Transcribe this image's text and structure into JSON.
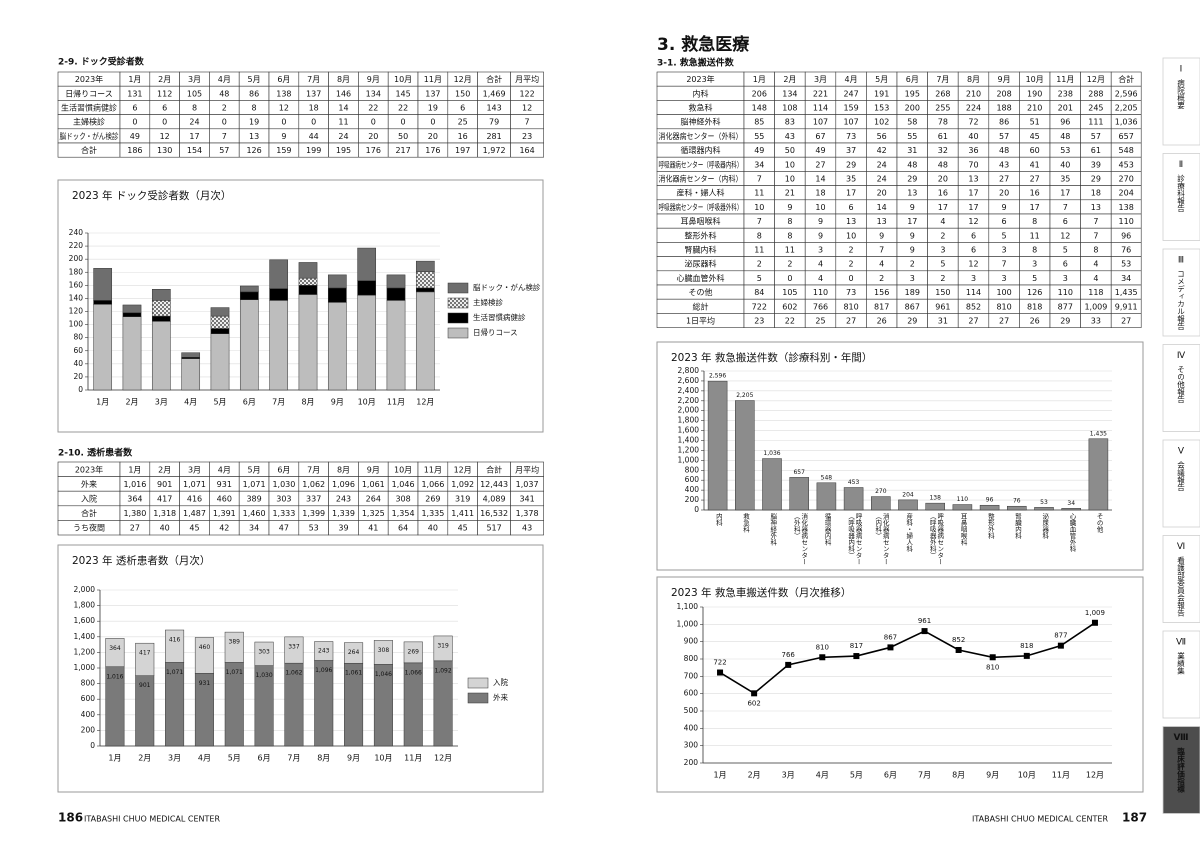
{
  "dock_section": "2-9. ドック受診者数",
  "dock_table": {
    "header": [
      "2023年",
      "1月",
      "2月",
      "3月",
      "4月",
      "5月",
      "6月",
      "7月",
      "8月",
      "9月",
      "10月",
      "11月",
      "12月",
      "合計",
      "月平均"
    ],
    "rows": [
      [
        "日帰りコース",
        "131",
        "112",
        "105",
        "48",
        "86",
        "138",
        "137",
        "146",
        "134",
        "145",
        "137",
        "150",
        "1,469",
        "122"
      ],
      [
        "生活習慣病健診",
        "6",
        "6",
        "8",
        "2",
        "8",
        "12",
        "18",
        "14",
        "22",
        "22",
        "19",
        "6",
        "143",
        "12"
      ],
      [
        "主婦検診",
        "0",
        "0",
        "24",
        "0",
        "19",
        "0",
        "0",
        "11",
        "0",
        "0",
        "0",
        "25",
        "79",
        "7"
      ],
      [
        "脳ドック・がん検診",
        "49",
        "12",
        "17",
        "7",
        "13",
        "9",
        "44",
        "24",
        "20",
        "50",
        "20",
        "16",
        "281",
        "23"
      ],
      [
        "合計",
        "186",
        "130",
        "154",
        "57",
        "126",
        "159",
        "199",
        "195",
        "176",
        "217",
        "176",
        "197",
        "1,972",
        "164"
      ]
    ]
  },
  "dialysis_section": "2-10. 透析患者数",
  "dialysis_table": {
    "header": [
      "2023年",
      "1月",
      "2月",
      "3月",
      "4月",
      "5月",
      "6月",
      "7月",
      "8月",
      "9月",
      "10月",
      "11月",
      "12月",
      "合計",
      "月平均"
    ],
    "rows": [
      [
        "外来",
        "1,016",
        "901",
        "1,071",
        "931",
        "1,071",
        "1,030",
        "1,062",
        "1,096",
        "1,061",
        "1,046",
        "1,066",
        "1,092",
        "12,443",
        "1,037"
      ],
      [
        "入院",
        "364",
        "417",
        "416",
        "460",
        "389",
        "303",
        "337",
        "243",
        "264",
        "308",
        "269",
        "319",
        "4,089",
        "341"
      ],
      [
        "合計",
        "1,380",
        "1,318",
        "1,487",
        "1,391",
        "1,460",
        "1,333",
        "1,399",
        "1,339",
        "1,325",
        "1,354",
        "1,335",
        "1,411",
        "16,532",
        "1,378"
      ],
      [
        "うち夜間",
        "27",
        "40",
        "45",
        "42",
        "34",
        "47",
        "53",
        "39",
        "41",
        "64",
        "40",
        "45",
        "517",
        "43"
      ]
    ]
  },
  "er_heading": "3. 救急医療",
  "er_section": "3-1. 救急搬送件数",
  "er_table": {
    "header": [
      "2023年",
      "1月",
      "2月",
      "3月",
      "4月",
      "5月",
      "6月",
      "7月",
      "8月",
      "9月",
      "10月",
      "11月",
      "12月",
      "合計"
    ],
    "rows": [
      [
        "内科",
        "206",
        "134",
        "221",
        "247",
        "191",
        "195",
        "268",
        "210",
        "208",
        "190",
        "238",
        "288",
        "2,596"
      ],
      [
        "救急科",
        "148",
        "108",
        "114",
        "159",
        "153",
        "200",
        "255",
        "224",
        "188",
        "210",
        "201",
        "245",
        "2,205"
      ],
      [
        "脳神経外科",
        "85",
        "83",
        "107",
        "107",
        "102",
        "58",
        "78",
        "72",
        "86",
        "51",
        "96",
        "111",
        "1,036"
      ],
      [
        "消化器病センター（外科）",
        "55",
        "43",
        "67",
        "73",
        "56",
        "55",
        "61",
        "40",
        "57",
        "45",
        "48",
        "57",
        "657"
      ],
      [
        "循環器内科",
        "49",
        "50",
        "49",
        "37",
        "42",
        "31",
        "32",
        "36",
        "48",
        "60",
        "53",
        "61",
        "548"
      ],
      [
        "呼吸器病センター（呼吸器内科）",
        "34",
        "10",
        "27",
        "29",
        "24",
        "48",
        "48",
        "70",
        "43",
        "41",
        "40",
        "39",
        "453"
      ],
      [
        "消化器病センター（内科）",
        "7",
        "10",
        "14",
        "35",
        "24",
        "29",
        "20",
        "13",
        "27",
        "27",
        "35",
        "29",
        "270"
      ],
      [
        "産科・婦人科",
        "11",
        "21",
        "18",
        "17",
        "20",
        "13",
        "16",
        "17",
        "20",
        "16",
        "17",
        "18",
        "204"
      ],
      [
        "呼吸器病センター（呼吸器外科）",
        "10",
        "9",
        "10",
        "6",
        "14",
        "9",
        "17",
        "17",
        "9",
        "17",
        "7",
        "13",
        "138"
      ],
      [
        "耳鼻咽喉科",
        "7",
        "8",
        "9",
        "13",
        "13",
        "17",
        "4",
        "12",
        "6",
        "8",
        "6",
        "7",
        "110"
      ],
      [
        "整形外科",
        "8",
        "8",
        "9",
        "10",
        "9",
        "9",
        "2",
        "6",
        "5",
        "11",
        "12",
        "7",
        "96"
      ],
      [
        "腎臓内科",
        "11",
        "11",
        "3",
        "2",
        "7",
        "9",
        "3",
        "6",
        "3",
        "8",
        "5",
        "8",
        "76"
      ],
      [
        "泌尿器科",
        "2",
        "2",
        "4",
        "2",
        "4",
        "2",
        "5",
        "12",
        "7",
        "3",
        "6",
        "4",
        "53"
      ],
      [
        "心臓血管外科",
        "5",
        "0",
        "4",
        "0",
        "2",
        "3",
        "2",
        "3",
        "3",
        "5",
        "3",
        "4",
        "34"
      ],
      [
        "その他",
        "84",
        "105",
        "110",
        "73",
        "156",
        "189",
        "150",
        "114",
        "100",
        "126",
        "110",
        "118",
        "1,435"
      ],
      [
        "総計",
        "722",
        "602",
        "766",
        "810",
        "817",
        "867",
        "961",
        "852",
        "810",
        "818",
        "877",
        "1,009",
        "9,911"
      ],
      [
        "1日平均",
        "23",
        "22",
        "25",
        "27",
        "26",
        "29",
        "31",
        "27",
        "27",
        "26",
        "29",
        "33",
        "27"
      ]
    ]
  },
  "chart_data": [
    {
      "type": "bar",
      "stacked": true,
      "title": "2023 年 ドック受診者数（月次）",
      "categories": [
        "1月",
        "2月",
        "3月",
        "4月",
        "5月",
        "6月",
        "7月",
        "8月",
        "9月",
        "10月",
        "11月",
        "12月"
      ],
      "series": [
        {
          "name": "日帰りコース",
          "color": "#bdbdbd",
          "values": [
            131,
            112,
            105,
            48,
            86,
            138,
            137,
            146,
            134,
            145,
            137,
            150
          ]
        },
        {
          "name": "生活習慣病健診",
          "color": "#000000",
          "values": [
            6,
            6,
            8,
            2,
            8,
            12,
            18,
            14,
            22,
            22,
            19,
            6
          ]
        },
        {
          "name": "主婦検診",
          "color": "#eeeeee",
          "pattern": "checker",
          "values": [
            0,
            0,
            24,
            0,
            19,
            0,
            0,
            11,
            0,
            0,
            0,
            25
          ]
        },
        {
          "name": "脳ドック・がん検診",
          "color": "#6e6e6e",
          "values": [
            49,
            12,
            17,
            7,
            13,
            9,
            44,
            24,
            20,
            50,
            20,
            16
          ]
        }
      ],
      "ylim": [
        0,
        240
      ],
      "yticks": [
        0,
        20,
        40,
        60,
        80,
        100,
        120,
        140,
        160,
        180,
        200,
        220,
        240
      ],
      "grid": true,
      "legend": "right"
    },
    {
      "type": "bar",
      "stacked": true,
      "title": "2023 年 透析患者数（月次）",
      "categories": [
        "1月",
        "2月",
        "3月",
        "4月",
        "5月",
        "6月",
        "7月",
        "8月",
        "9月",
        "10月",
        "11月",
        "12月"
      ],
      "series": [
        {
          "name": "外来",
          "color": "#7a7a7a",
          "values": [
            1016,
            901,
            1071,
            931,
            1071,
            1030,
            1062,
            1096,
            1061,
            1046,
            1066,
            1092
          ],
          "value_labels": [
            "1,016",
            "901",
            "1,071",
            "931",
            "1,071",
            "1,030",
            "1,062",
            "1,096",
            "1,061",
            "1,046",
            "1,066",
            "1,092"
          ]
        },
        {
          "name": "入院",
          "color": "#d4d4d4",
          "values": [
            364,
            417,
            416,
            460,
            389,
            303,
            337,
            243,
            264,
            308,
            269,
            319
          ]
        }
      ],
      "ylim": [
        0,
        2000
      ],
      "yticks": [
        0,
        200,
        400,
        600,
        800,
        {
          "value": 1000,
          "label": "1,000"
        },
        {
          "value": 1200,
          "label": "1,200"
        },
        {
          "value": 1400,
          "label": "1,400"
        },
        {
          "value": 1600,
          "label": "1,600"
        },
        {
          "value": 1800,
          "label": "1,800"
        },
        {
          "value": 2000,
          "label": "2,000"
        }
      ],
      "grid": true,
      "legend": "right",
      "data_labels": true
    },
    {
      "type": "bar",
      "title": "2023 年 救急搬送件数（診療科別・年間）",
      "categories": [
        "内科",
        "救急科",
        "脳神経外科",
        "消化器病センター（外科）",
        "循環器内科",
        "呼吸器病センター（呼吸器内科）",
        "消化器病センター（内科）",
        "産科・婦人科",
        "呼吸器病センター（呼吸器外科）",
        "耳鼻咽喉科",
        "整形外科",
        "腎臓内科",
        "泌尿器科",
        "心臓血管外科",
        "その他"
      ],
      "values": [
        2596,
        2205,
        1036,
        657,
        548,
        453,
        270,
        204,
        138,
        110,
        96,
        76,
        53,
        34,
        1435
      ],
      "value_labels": [
        "2,596",
        "2,205",
        "1,036",
        "657",
        "548",
        "453",
        "270",
        "204",
        "138",
        "110",
        "96",
        "76",
        "53",
        "34",
        "1,435"
      ],
      "color": "#8c8c8c",
      "ylim": [
        0,
        2800
      ],
      "yticks": [
        0,
        200,
        400,
        600,
        800,
        {
          "value": 1000,
          "label": "1,000"
        },
        {
          "value": 1200,
          "label": "1,200"
        },
        {
          "value": 1400,
          "label": "1,400"
        },
        {
          "value": 1600,
          "label": "1,600"
        },
        {
          "value": 1800,
          "label": "1,800"
        },
        {
          "value": 2000,
          "label": "2,000"
        },
        {
          "value": 2200,
          "label": "2,200"
        },
        {
          "value": 2400,
          "label": "2,400"
        },
        {
          "value": 2600,
          "label": "2,600"
        },
        {
          "value": 2800,
          "label": "2,800"
        }
      ],
      "grid": true,
      "data_labels": true
    },
    {
      "type": "line",
      "title": "2023 年 救急車搬送件数（月次推移）",
      "categories": [
        "1月",
        "2月",
        "3月",
        "4月",
        "5月",
        "6月",
        "7月",
        "8月",
        "9月",
        "10月",
        "11月",
        "12月"
      ],
      "values": [
        722,
        602,
        766,
        810,
        817,
        867,
        961,
        852,
        810,
        818,
        877,
        1009
      ],
      "value_labels": [
        "722",
        "602",
        "766",
        "810",
        "817",
        "867",
        "961",
        "852",
        "810",
        "818",
        "877",
        "1,009"
      ],
      "color": "#000000",
      "ylim": [
        200,
        1100
      ],
      "yticks": [
        200,
        300,
        400,
        500,
        600,
        700,
        800,
        900,
        {
          "value": 1000,
          "label": "1,000"
        },
        {
          "value": 1100,
          "label": "1,100"
        }
      ],
      "grid": true,
      "data_labels": true
    }
  ],
  "footer_left": {
    "page": "186",
    "name": "ITABASHI CHUO MEDICAL CENTER"
  },
  "footer_right": {
    "name": "ITABASHI CHUO MEDICAL CENTER",
    "page": "187"
  },
  "tabs": [
    {
      "number": "Ⅰ",
      "label": "病院概要"
    },
    {
      "number": "Ⅱ",
      "label": "診療科報告"
    },
    {
      "number": "Ⅲ",
      "label": "コメディカル報告"
    },
    {
      "number": "Ⅳ",
      "label": "その他報告"
    },
    {
      "number": "Ⅴ",
      "label": "会議報告"
    },
    {
      "number": "Ⅵ",
      "label": "看護部委員会報告"
    },
    {
      "number": "Ⅶ",
      "label": "業績集"
    },
    {
      "number": "Ⅷ",
      "label": "臨床評価指標",
      "active": true
    }
  ]
}
